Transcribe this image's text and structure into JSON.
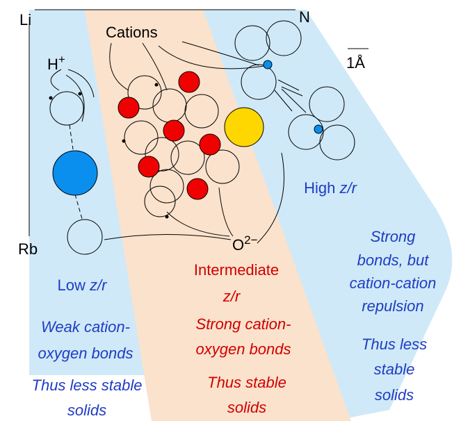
{
  "labels": {
    "li": "Li",
    "n": "N",
    "rb": "Rb",
    "cations": "Cations",
    "hplus": {
      "base": "H",
      "sup": "+"
    },
    "oxide": {
      "base": "O",
      "sup": "2−"
    },
    "scale": "1Å"
  },
  "regions": {
    "low": {
      "heading": "Low",
      "ratio": "z/r",
      "bonds": [
        "Weak cation-",
        "oxygen bonds"
      ],
      "result": [
        "Thus less stable",
        "solids"
      ]
    },
    "intermediate": {
      "heading": "Intermediate",
      "ratio": "z/r",
      "bonds": [
        "Strong cation-",
        "oxygen bonds"
      ],
      "result": [
        "Thus stable",
        "solids"
      ]
    },
    "high": {
      "heading": "High",
      "ratio": "z/r",
      "bonds": [
        "Strong",
        "bonds, but",
        "cation-cation",
        "repulsion"
      ],
      "result": [
        "Thus less",
        "stable",
        "solids"
      ]
    }
  }
}
